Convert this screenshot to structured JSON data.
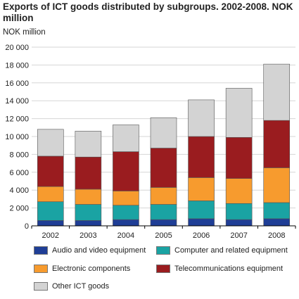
{
  "header": {
    "title": "Exports of ICT goods distributed by subgroups. 2002-2008. NOK million",
    "unit": "NOK million"
  },
  "chart_data": {
    "type": "bar",
    "stacked": true,
    "title": "Exports of ICT goods distributed by subgroups. 2002-2008. NOK million",
    "ylabel": "NOK million",
    "xlabel": "",
    "categories": [
      "2002",
      "2003",
      "2004",
      "2005",
      "2006",
      "2007",
      "2008"
    ],
    "ylim": [
      0,
      20000
    ],
    "yticks": [
      0,
      2000,
      4000,
      6000,
      8000,
      10000,
      12000,
      14000,
      16000,
      18000,
      20000
    ],
    "ytick_labels": [
      "0",
      "2 000",
      "4 000",
      "6 000",
      "8 000",
      "10 000",
      "12 000",
      "14 000",
      "16 000",
      "18 000",
      "20 000"
    ],
    "grid": true,
    "legend_position": "bottom",
    "series": [
      {
        "name": "Audio and video equipment",
        "color": "#1f3e96",
        "values": [
          600,
          600,
          700,
          700,
          800,
          700,
          800
        ]
      },
      {
        "name": "Computer and related equipment",
        "color": "#1aa3a3",
        "values": [
          2100,
          1800,
          1600,
          1700,
          2000,
          1800,
          1800
        ]
      },
      {
        "name": "Electronic components",
        "color": "#f79b2e",
        "values": [
          1700,
          1700,
          1600,
          1900,
          2600,
          2800,
          3900
        ]
      },
      {
        "name": "Telecommunications equipment",
        "color": "#9a1c1f",
        "values": [
          3400,
          3600,
          4400,
          4400,
          4600,
          4600,
          5300
        ]
      },
      {
        "name": "Other ICT goods",
        "color": "#d3d3d3",
        "values": [
          3000,
          2900,
          3000,
          3400,
          4100,
          5500,
          6300
        ]
      }
    ]
  }
}
